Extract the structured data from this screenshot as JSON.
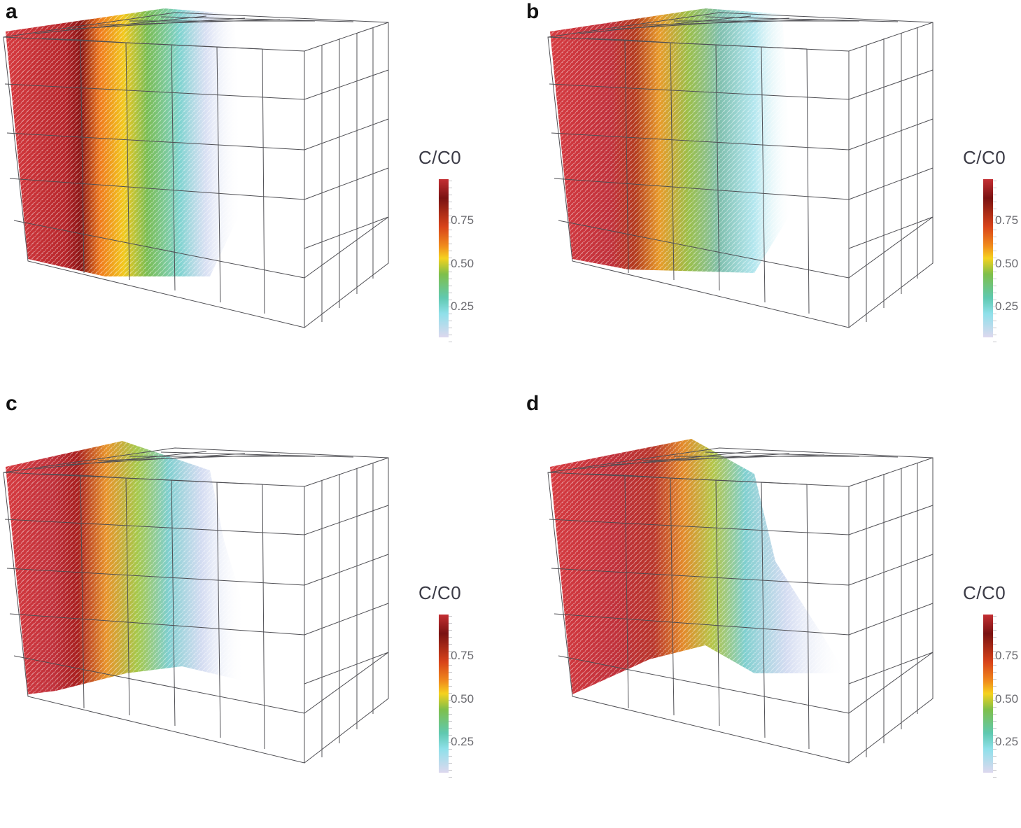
{
  "panels": [
    {
      "label": "a",
      "colorbar_title": "C/C0"
    },
    {
      "label": "b",
      "colorbar_title": "C/C0"
    },
    {
      "label": "c",
      "colorbar_title": "C/C0"
    },
    {
      "label": "d",
      "colorbar_title": "C/C0"
    }
  ],
  "colorbar": {
    "ticks": [
      "0.75",
      "0.50",
      "0.25"
    ],
    "colors": [
      "#c42f33",
      "#7a1212",
      "#d8431a",
      "#f08a1c",
      "#f5d21e",
      "#7fbf4a",
      "#5fc9b0",
      "#8fe0ea",
      "#ddd8ee"
    ]
  }
}
